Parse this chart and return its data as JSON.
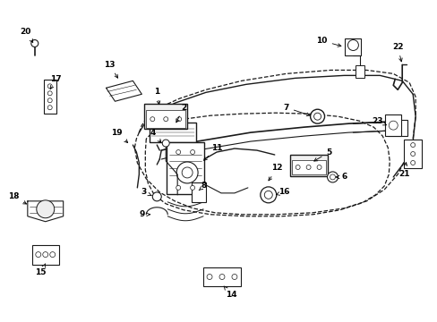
{
  "background_color": "#ffffff",
  "fig_width": 4.89,
  "fig_height": 3.6,
  "dpi": 100,
  "col": "#1a1a1a",
  "label_positions": {
    "1": {
      "txt": [
        0.39,
        0.72
      ],
      "pt": [
        0.362,
        0.695
      ]
    },
    "2": {
      "txt": [
        0.42,
        0.685
      ],
      "pt": [
        0.39,
        0.668
      ]
    },
    "3": {
      "txt": [
        0.285,
        0.395
      ],
      "pt": [
        0.298,
        0.378
      ]
    },
    "4": {
      "txt": [
        0.318,
        0.565
      ],
      "pt": [
        0.318,
        0.545
      ]
    },
    "5": {
      "txt": [
        0.638,
        0.48
      ],
      "pt": [
        0.658,
        0.47
      ]
    },
    "6": {
      "txt": [
        0.658,
        0.435
      ],
      "pt": [
        0.672,
        0.445
      ]
    },
    "7": {
      "txt": [
        0.64,
        0.735
      ],
      "pt": [
        0.66,
        0.718
      ]
    },
    "8": {
      "txt": [
        0.405,
        0.4
      ],
      "pt": [
        0.378,
        0.408
      ]
    },
    "9": {
      "txt": [
        0.297,
        0.355
      ],
      "pt": [
        0.302,
        0.368
      ]
    },
    "10": {
      "txt": [
        0.544,
        0.93
      ],
      "pt": [
        0.57,
        0.912
      ]
    },
    "11": {
      "txt": [
        0.44,
        0.6
      ],
      "pt": [
        0.395,
        0.572
      ]
    },
    "12": {
      "txt": [
        0.538,
        0.545
      ],
      "pt": [
        0.52,
        0.568
      ]
    },
    "13": {
      "txt": [
        0.248,
        0.778
      ],
      "pt": [
        0.248,
        0.758
      ]
    },
    "14": {
      "txt": [
        0.388,
        0.108
      ],
      "pt": [
        0.368,
        0.128
      ]
    },
    "15": {
      "txt": [
        0.097,
        0.188
      ],
      "pt": [
        0.097,
        0.205
      ]
    },
    "16": {
      "txt": [
        0.492,
        0.488
      ],
      "pt": [
        0.472,
        0.488
      ]
    },
    "17": {
      "txt": [
        0.11,
        0.648
      ],
      "pt": [
        0.11,
        0.632
      ]
    },
    "18": {
      "txt": [
        0.058,
        0.452
      ],
      "pt": [
        0.072,
        0.455
      ]
    },
    "19": {
      "txt": [
        0.2,
        0.572
      ],
      "pt": [
        0.212,
        0.558
      ]
    },
    "20": {
      "txt": [
        0.062,
        0.845
      ],
      "pt": [
        0.075,
        0.828
      ]
    },
    "21": {
      "txt": [
        0.908,
        0.458
      ],
      "pt": [
        0.898,
        0.47
      ]
    },
    "22": {
      "txt": [
        0.912,
        0.772
      ],
      "pt": [
        0.908,
        0.752
      ]
    },
    "23": {
      "txt": [
        0.84,
        0.522
      ],
      "pt": [
        0.852,
        0.512
      ]
    }
  }
}
